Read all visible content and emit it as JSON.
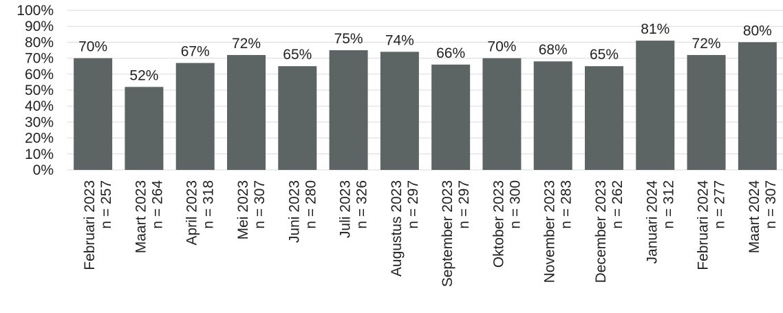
{
  "chart_data": {
    "type": "bar",
    "title": "",
    "xlabel": "",
    "ylabel": "",
    "ylim": [
      0,
      100
    ],
    "yticks": [
      "0%",
      "10%",
      "20%",
      "30%",
      "40%",
      "50%",
      "60%",
      "70%",
      "80%",
      "90%",
      "100%"
    ],
    "grid": true,
    "bar_color": "#5c6563",
    "grid_color": "#d9d9d9",
    "categories": [
      [
        "Februari 2023",
        "n = 257"
      ],
      [
        "Maart 2023",
        "n = 264"
      ],
      [
        "April 2023",
        "n = 318"
      ],
      [
        "Mei 2023",
        "n = 307"
      ],
      [
        "Juni 2023",
        "n = 280"
      ],
      [
        "Juli 2023",
        "n = 326"
      ],
      [
        "Augustus 2023",
        "n = 297"
      ],
      [
        "September 2023",
        "n = 297"
      ],
      [
        "Oktober 2023",
        "n = 300"
      ],
      [
        "November 2023",
        "n = 283"
      ],
      [
        "December 2023",
        "n = 262"
      ],
      [
        "Januari 2024",
        "n = 312"
      ],
      [
        "Februari 2024",
        "n = 277"
      ],
      [
        "Maart 2024",
        "n = 307"
      ]
    ],
    "values": [
      70,
      52,
      67,
      72,
      65,
      75,
      74,
      66,
      70,
      68,
      65,
      81,
      72,
      80
    ],
    "data_labels": [
      "70%",
      "52%",
      "67%",
      "72%",
      "65%",
      "75%",
      "74%",
      "66%",
      "70%",
      "68%",
      "65%",
      "81%",
      "72%",
      "80%"
    ]
  }
}
